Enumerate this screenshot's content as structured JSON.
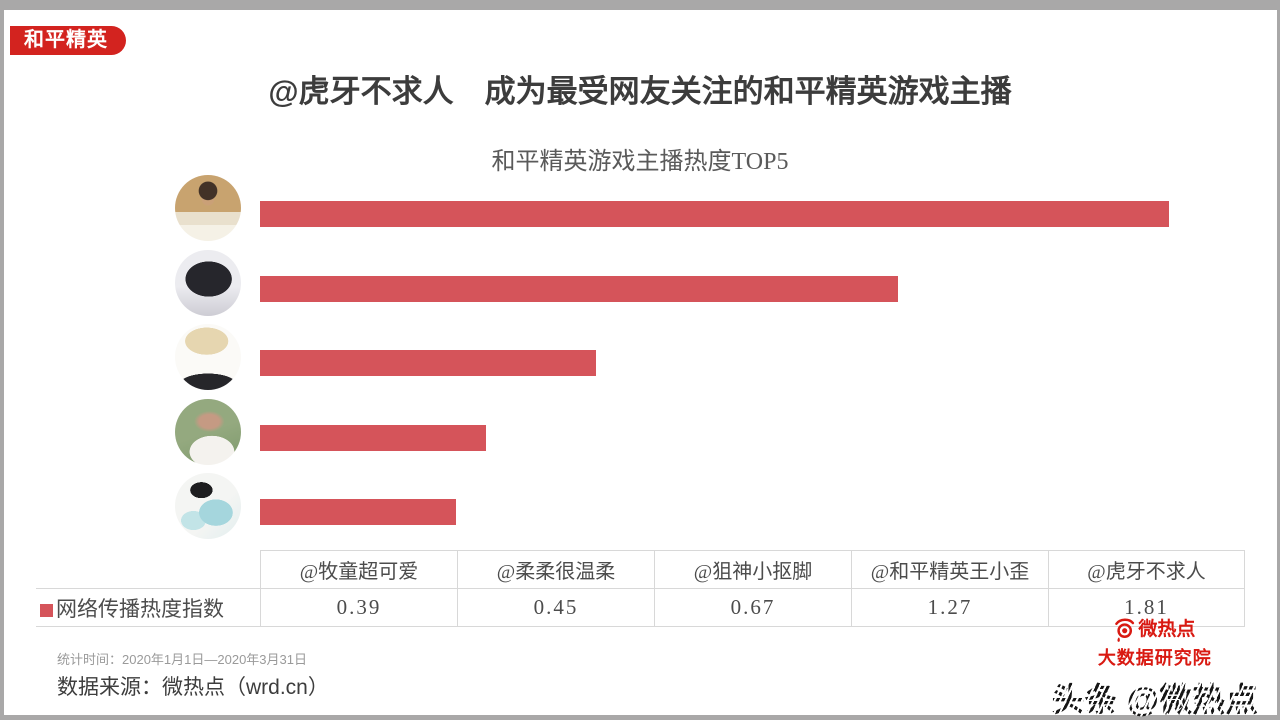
{
  "page": {
    "badge": "和平精英",
    "badge_color": "#d3231f",
    "title": "@虎牙不求人　成为最受网友关注的和平精英游戏主播"
  },
  "chart_data": {
    "type": "bar",
    "orientation": "horizontal",
    "title": "和平精英游戏主播热度TOP5",
    "series_name": "网络传播热度指数",
    "categories": [
      "@虎牙不求人",
      "@和平精英王小歪",
      "@狙神小抠脚",
      "@柔柔很温柔",
      "@牧童超可爱"
    ],
    "values": [
      1.81,
      1.27,
      0.67,
      0.45,
      0.39
    ],
    "avatars": [
      "huya-buqiuren",
      "wangxiaowai",
      "jushen-xiaokoujiao",
      "rourou",
      "mutong"
    ],
    "xlim": [
      0,
      1.96
    ],
    "bar_color": "#d5545a",
    "grid": false,
    "legend_position": "table-row-below-chart"
  },
  "table": {
    "row_label": "网络传播热度指数",
    "legend_color": "#d5545a",
    "columns": [
      "@牧童超可爱",
      "@柔柔很温柔",
      "@狙神小抠脚",
      "@和平精英王小歪",
      "@虎牙不求人"
    ],
    "values": [
      "0.39",
      "0.45",
      "0.67",
      "1.27",
      "1.81"
    ]
  },
  "footer": {
    "stats_period": "统计时间：2020年1月1日—2020年3月31日",
    "source": "数据来源：微热点（wrd.cn）",
    "logo_line1": "微热点",
    "logo_line2": "大数据研究院",
    "logo_icon": "weibo-eye-icon",
    "logo_color": "#d91a12",
    "watermark": "头条 @微热点"
  }
}
